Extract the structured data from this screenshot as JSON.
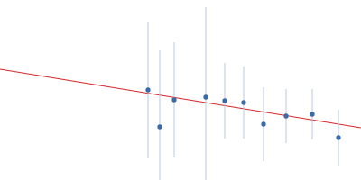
{
  "chart_data": {
    "type": "scatter",
    "x": [
      164,
      177,
      193,
      228,
      249,
      270,
      292,
      317,
      346,
      375
    ],
    "values": [
      100,
      59,
      89,
      92,
      88,
      86,
      62,
      71,
      73,
      47
    ],
    "errors": [
      76,
      85,
      64,
      100,
      42,
      40,
      41,
      30,
      28,
      31
    ],
    "color": "#3b6aa8",
    "error_color": "#b8c8e0",
    "fit": {
      "x": [
        0,
        400
      ],
      "values": [
        123,
        58
      ],
      "color": "#d62728"
    },
    "xlim": [
      0,
      400
    ],
    "ylim": [
      0,
      200
    ],
    "tick_labels": false,
    "grid": false
  }
}
